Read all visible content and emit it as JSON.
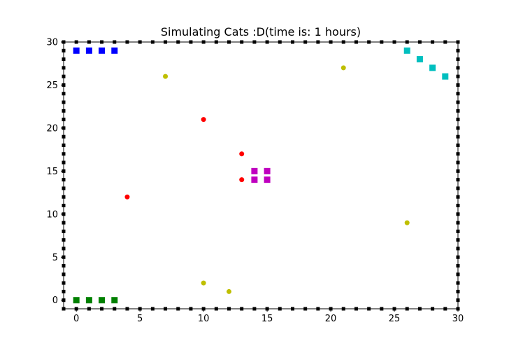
{
  "chart_data": {
    "type": "scatter",
    "title": "Simulating Cats :D(time is: 1 hours)",
    "xlabel": "",
    "ylabel": "",
    "xlim": [
      -1,
      30
    ],
    "ylim": [
      -1,
      30
    ],
    "xticks": [
      0,
      5,
      10,
      15,
      20,
      25,
      30
    ],
    "yticks": [
      0,
      5,
      10,
      15,
      20,
      25,
      30
    ],
    "grid": false,
    "wall": {
      "color": "#000000",
      "marker": "square",
      "x_positions": [
        -1,
        0,
        1,
        2,
        3,
        4,
        5,
        6,
        7,
        8,
        9,
        10,
        11,
        12,
        13,
        14,
        15,
        16,
        17,
        18,
        19,
        20,
        21,
        22,
        23,
        24,
        25,
        26,
        27,
        28,
        29,
        30
      ],
      "y_positions": [
        -1,
        0,
        1,
        2,
        3,
        4,
        5,
        6,
        7,
        8,
        9,
        10,
        11,
        12,
        13,
        14,
        15,
        16,
        17,
        18,
        19,
        20,
        21,
        22,
        23,
        24,
        25,
        26,
        27,
        28,
        29,
        30
      ]
    },
    "series": [
      {
        "color": "#0000ff",
        "marker": "square",
        "points": [
          [
            0,
            29
          ],
          [
            1,
            29
          ],
          [
            2,
            29
          ],
          [
            3,
            29
          ]
        ]
      },
      {
        "color": "#00bfbf",
        "marker": "square",
        "points": [
          [
            26,
            29
          ],
          [
            27,
            28
          ],
          [
            28,
            27
          ],
          [
            29,
            26
          ]
        ]
      },
      {
        "color": "#008000",
        "marker": "square",
        "points": [
          [
            0,
            0
          ],
          [
            1,
            0
          ],
          [
            2,
            0
          ],
          [
            3,
            0
          ]
        ]
      },
      {
        "color": "#bf00bf",
        "marker": "square",
        "points": [
          [
            14,
            15
          ],
          [
            15,
            15
          ],
          [
            14,
            14
          ],
          [
            15,
            14
          ]
        ]
      },
      {
        "color": "#ff0000",
        "marker": "circle",
        "points": [
          [
            10,
            21
          ],
          [
            13,
            17
          ],
          [
            13,
            14
          ],
          [
            4,
            12
          ]
        ]
      },
      {
        "color": "#bfbf00",
        "marker": "circle",
        "points": [
          [
            7,
            26
          ],
          [
            21,
            27
          ],
          [
            26,
            9
          ],
          [
            10,
            2
          ],
          [
            12,
            1
          ]
        ]
      }
    ]
  }
}
